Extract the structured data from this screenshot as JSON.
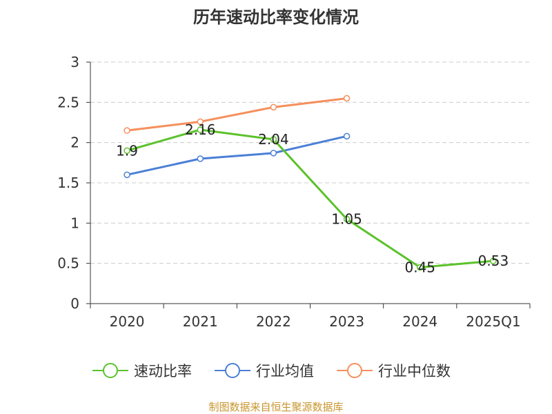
{
  "chart_data": {
    "type": "line",
    "title": "历年速动比率变化情况",
    "categories": [
      "2020",
      "2021",
      "2022",
      "2023",
      "2024",
      "2025Q1"
    ],
    "ylim": [
      0,
      3
    ],
    "yticks": [
      "0",
      "0.5",
      "1",
      "1.5",
      "2",
      "2.5",
      "3"
    ],
    "ytick_values": [
      0,
      0.5,
      1,
      1.5,
      2,
      2.5,
      3
    ],
    "grid": true,
    "legend_position": "bottom",
    "series": [
      {
        "name": "速动比率",
        "color": "#5bc22a",
        "values": [
          1.9,
          2.16,
          2.04,
          1.05,
          0.45,
          0.53
        ],
        "labels": [
          "1.9",
          "2.16",
          "2.04",
          "1.05",
          "0.45",
          "0.53"
        ],
        "show_labels": true
      },
      {
        "name": "行业均值",
        "color": "#4a7fd6",
        "values": [
          1.6,
          1.8,
          1.87,
          2.08,
          null,
          null
        ],
        "show_labels": false
      },
      {
        "name": "行业中位数",
        "color": "#f58f5c",
        "values": [
          2.15,
          2.26,
          2.44,
          2.55,
          null,
          null
        ],
        "show_labels": false
      }
    ]
  },
  "source_note": "制图数据来自恒生聚源数据库"
}
